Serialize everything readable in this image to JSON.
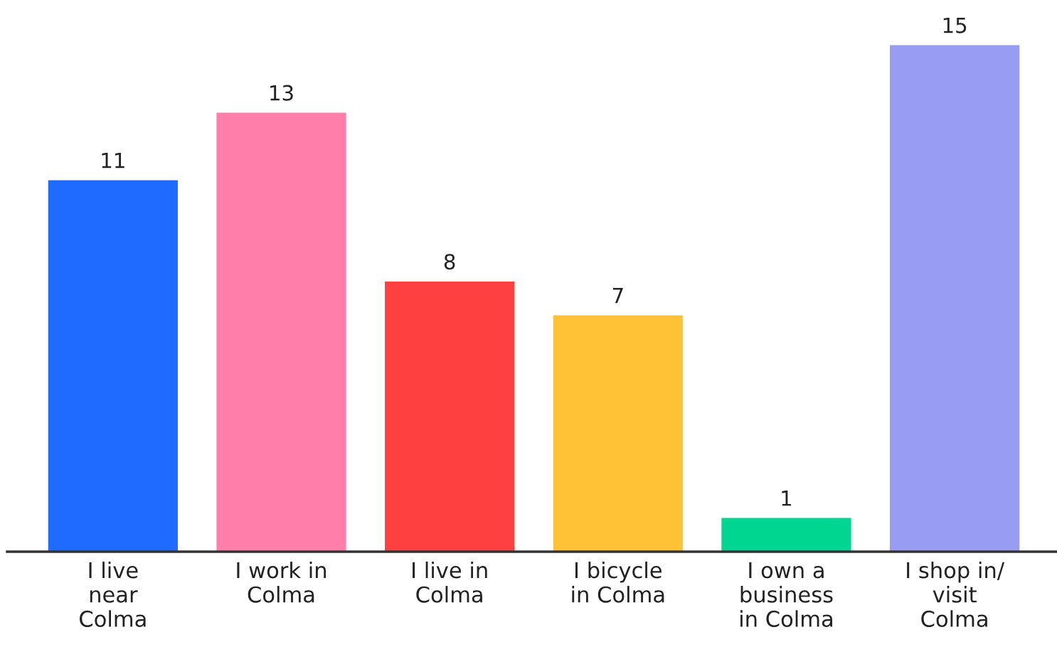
{
  "chart_data": {
    "type": "bar",
    "categories": [
      "I live\nnear\nColma",
      "I work in\nColma",
      "I live in\nColma",
      "I bicycle\nin Colma",
      "I own a\nbusiness\nin Colma",
      "I shop in/\nvisit\nColma"
    ],
    "values": [
      11,
      13,
      8,
      7,
      1,
      15
    ],
    "colors": [
      "#1f6bff",
      "#ff7eaa",
      "#ff4040",
      "#ffc236",
      "#00d68f",
      "#989cf2"
    ],
    "data_labels": true
  }
}
